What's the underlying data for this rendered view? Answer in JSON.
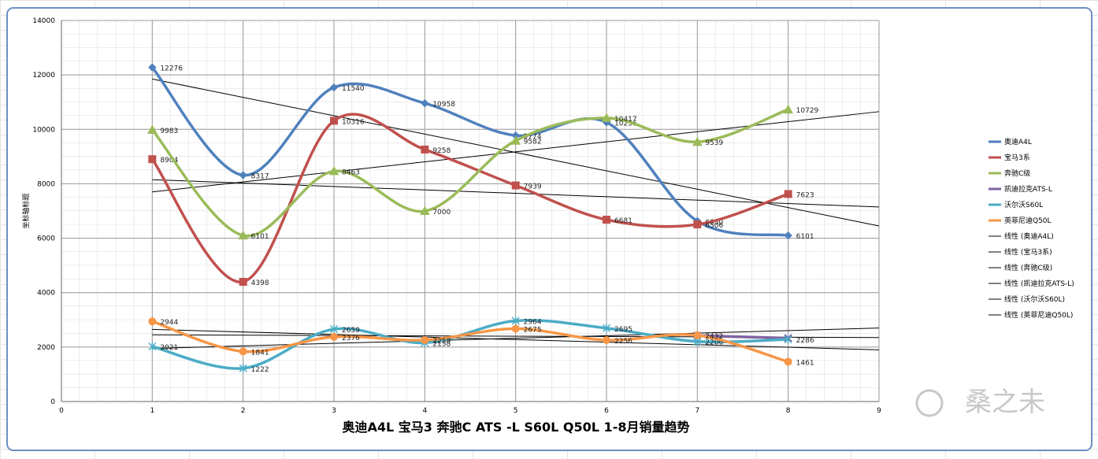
{
  "chart_data": {
    "type": "line",
    "title": "奥迪A4L  宝马3 奔驰C ATS -L S60L  Q50L 1-8月销量趋势",
    "y_axis_title": "坐标轴标题",
    "watermark": "桑之未",
    "x": [
      1,
      2,
      3,
      4,
      5,
      6,
      7,
      8
    ],
    "xlim": [
      0,
      9
    ],
    "xticks": [
      0,
      1,
      2,
      3,
      4,
      5,
      6,
      7,
      8,
      9
    ],
    "ylim": [
      0,
      14000
    ],
    "yticks": [
      0,
      2000,
      4000,
      6000,
      8000,
      10000,
      12000,
      14000
    ],
    "grid": true,
    "smooth": true,
    "legend": "right",
    "series": [
      {
        "name": "奥迪A4L",
        "color": "#4f81bd",
        "marker": "diamond",
        "values": [
          12276,
          8317,
          11540,
          10958,
          9774,
          10256,
          6630,
          6101
        ]
      },
      {
        "name": "宝马3系",
        "color": "#c0504d",
        "marker": "square",
        "values": [
          8904,
          4398,
          10316,
          9258,
          7939,
          6681,
          6506,
          7623
        ]
      },
      {
        "name": "奔驰C级",
        "color": "#9bbb59",
        "marker": "triangle",
        "values": [
          9983,
          6101,
          8463,
          7000,
          9582,
          10417,
          9539,
          10729
        ]
      },
      {
        "name": "凯迪拉克ATS-L",
        "color": "#8064a2",
        "marker": "x",
        "labels": false,
        "values": [
          null,
          null,
          null,
          null,
          null,
          null,
          2420,
          2330
        ]
      },
      {
        "name": "沃尔沃S60L",
        "color": "#4bacc6",
        "marker": "star",
        "values": [
          2021,
          1222,
          2659,
          2158,
          2964,
          2695,
          2206,
          2286
        ]
      },
      {
        "name": "英菲尼迪Q50L",
        "color": "#f79646",
        "marker": "circle",
        "values": [
          2944,
          1841,
          2376,
          2258,
          2675,
          2256,
          2432,
          1461
        ]
      }
    ],
    "trend_x": [
      1,
      9
    ],
    "trendlines": [
      {
        "name": "线性 (奥迪A4L)",
        "color": "#000000",
        "values": [
          11850,
          6450
        ]
      },
      {
        "name": "线性 (宝马3系)",
        "color": "#000000",
        "values": [
          8150,
          7150
        ]
      },
      {
        "name": "线性 (奔驰C级)",
        "color": "#000000",
        "values": [
          7700,
          10650
        ]
      },
      {
        "name": "线性 (凯迪拉克ATS-L)",
        "color": "#000000",
        "values": [
          2450,
          2350
        ]
      },
      {
        "name": "线性 (沃尔沃S60L)",
        "color": "#000000",
        "values": [
          1950,
          2700
        ]
      },
      {
        "name": "线性 (英菲尼迪Q50L)",
        "color": "#000000",
        "values": [
          2650,
          1900
        ]
      }
    ]
  }
}
